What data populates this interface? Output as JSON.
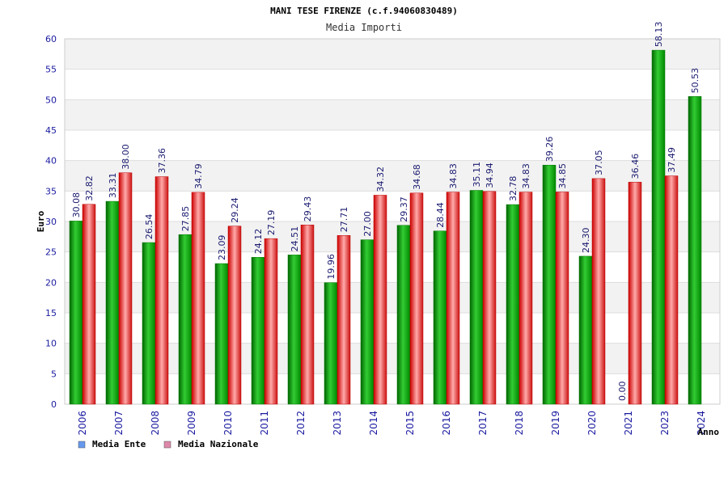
{
  "chart_data": {
    "type": "bar",
    "title": "MANI TESE FIRENZE (c.f.94060830489)",
    "subtitle": "Media Importi",
    "xlabel": "Anno",
    "ylabel": "Euro",
    "ylim": [
      0,
      60
    ],
    "yticks": [
      "0",
      "5",
      "10",
      "15",
      "20",
      "25",
      "30",
      "35",
      "40",
      "45",
      "50",
      "55",
      "60"
    ],
    "grid": true,
    "legend_position": "bottom-left",
    "categories": [
      "2006",
      "2007",
      "2008",
      "2009",
      "2010",
      "2011",
      "2012",
      "2013",
      "2014",
      "2015",
      "2016",
      "2017",
      "2018",
      "2019",
      "2020",
      "2021",
      "2023",
      "2024"
    ],
    "series": [
      {
        "name": "Media Ente",
        "color": "#22aa22",
        "legend_color": "#6699ee",
        "values": [
          30.08,
          33.31,
          26.54,
          27.85,
          23.09,
          24.12,
          24.51,
          19.96,
          27.0,
          29.37,
          28.44,
          35.11,
          32.78,
          39.26,
          24.3,
          0.0,
          58.13,
          50.53
        ],
        "labels": [
          "30.08",
          "33.31",
          "26.54",
          "27.85",
          "23.09",
          "24.12",
          "24.51",
          "19.96",
          "27.00",
          "29.37",
          "28.44",
          "35.11",
          "32.78",
          "39.26",
          "24.30",
          "0.00",
          "58.13",
          "50.53"
        ]
      },
      {
        "name": "Media Nazionale",
        "color": "#dd2222",
        "legend_color": "#dd88aa",
        "values": [
          32.82,
          38.0,
          37.36,
          34.79,
          29.24,
          27.19,
          29.43,
          27.71,
          34.32,
          34.68,
          34.83,
          34.94,
          34.83,
          34.85,
          37.05,
          36.46,
          37.49,
          null
        ],
        "labels": [
          "32.82",
          "38.00",
          "37.36",
          "34.79",
          "29.24",
          "27.19",
          "29.43",
          "27.71",
          "34.32",
          "34.68",
          "34.83",
          "34.94",
          "34.83",
          "34.85",
          "37.05",
          "36.46",
          "37.49",
          ""
        ]
      }
    ]
  }
}
